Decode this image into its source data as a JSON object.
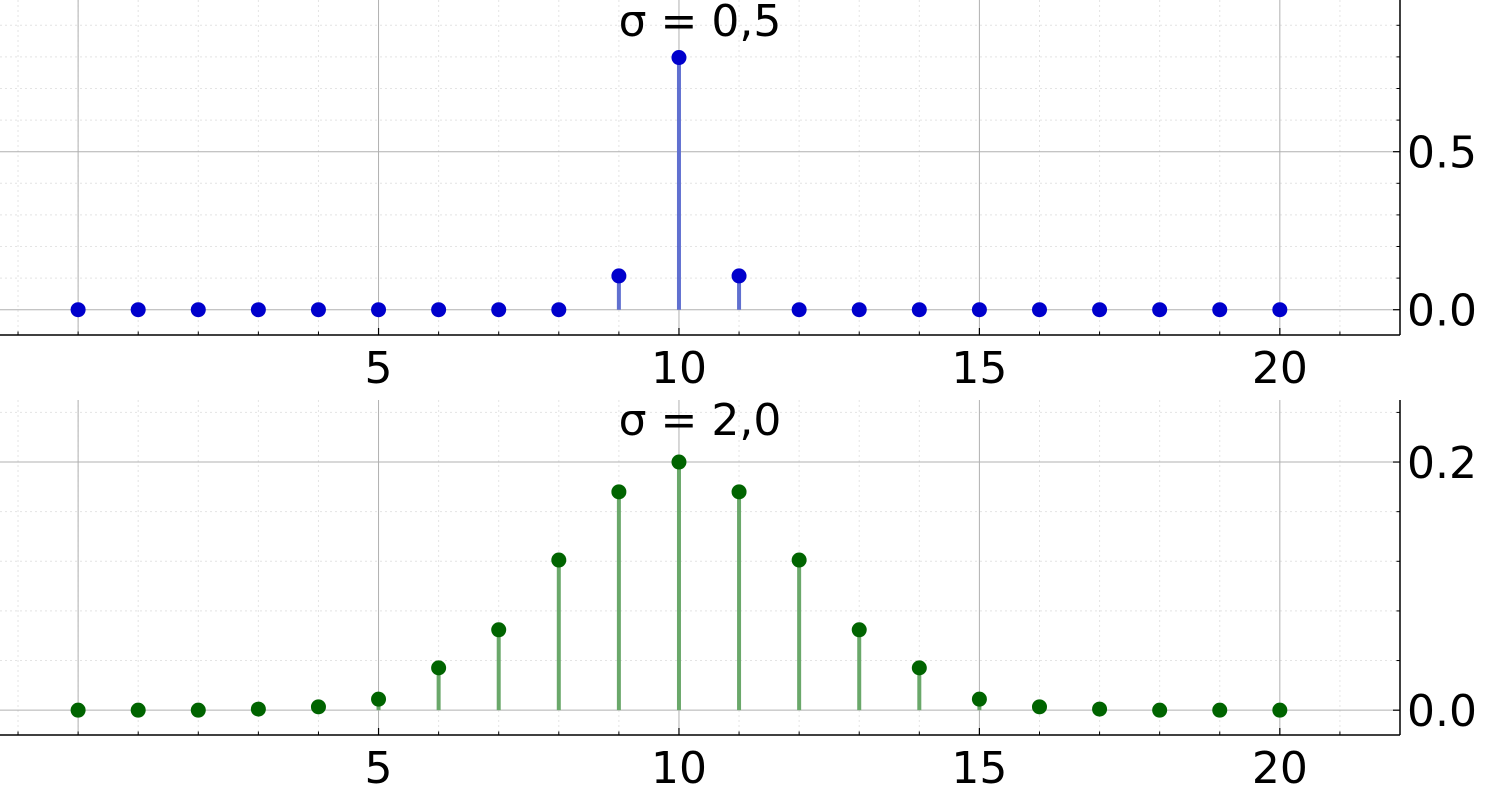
{
  "chart_data": [
    {
      "type": "stem",
      "title": "σ = 0,5",
      "xlabel": "",
      "ylabel": "",
      "x": [
        0,
        1,
        2,
        3,
        4,
        5,
        6,
        7,
        8,
        9,
        10,
        11,
        12,
        13,
        14,
        15,
        16,
        17,
        18,
        19,
        20
      ],
      "series": [
        {
          "values": [
            0,
            0,
            0,
            0,
            0,
            0,
            0,
            0,
            0,
            0.107,
            0.798,
            0.107,
            0,
            0,
            0,
            0,
            0,
            0,
            0,
            0,
            0
          ],
          "color": "#0000cc",
          "stem_color": "#6070d0"
        }
      ],
      "xlim": [
        -1.3,
        22.0
      ],
      "ylim": [
        -0.08,
        0.98
      ],
      "xticks": [
        5,
        10,
        15,
        20
      ],
      "xtick_labels": [
        "5",
        "10",
        "15",
        "20"
      ],
      "yticks": [
        0.0,
        0.5
      ],
      "ytick_labels": [
        "0.0",
        "0.5"
      ],
      "yaxis_side": "right",
      "grid": true
    },
    {
      "type": "stem",
      "title": "σ = 2,0",
      "xlabel": "",
      "ylabel": "",
      "x": [
        0,
        1,
        2,
        3,
        4,
        5,
        6,
        7,
        8,
        9,
        10,
        11,
        12,
        13,
        14,
        15,
        16,
        17,
        18,
        19,
        20
      ],
      "series": [
        {
          "values": [
            0.0,
            0.0,
            0.0,
            0.0009,
            0.0027,
            0.0089,
            0.0341,
            0.0648,
            0.121,
            0.176,
            0.2,
            0.176,
            0.121,
            0.0648,
            0.0341,
            0.0089,
            0.0027,
            0.0009,
            0.0,
            0.0,
            0.0
          ],
          "color": "#006400",
          "stem_color": "#6aa86a"
        }
      ],
      "xlim": [
        -1.3,
        22.0
      ],
      "ylim": [
        -0.02,
        0.25
      ],
      "xticks": [
        5,
        10,
        15,
        20
      ],
      "xtick_labels": [
        "5",
        "10",
        "15",
        "20"
      ],
      "yticks": [
        0.0,
        0.2
      ],
      "ytick_labels": [
        "0.0",
        "0.2"
      ],
      "yaxis_side": "right",
      "grid": true
    }
  ]
}
